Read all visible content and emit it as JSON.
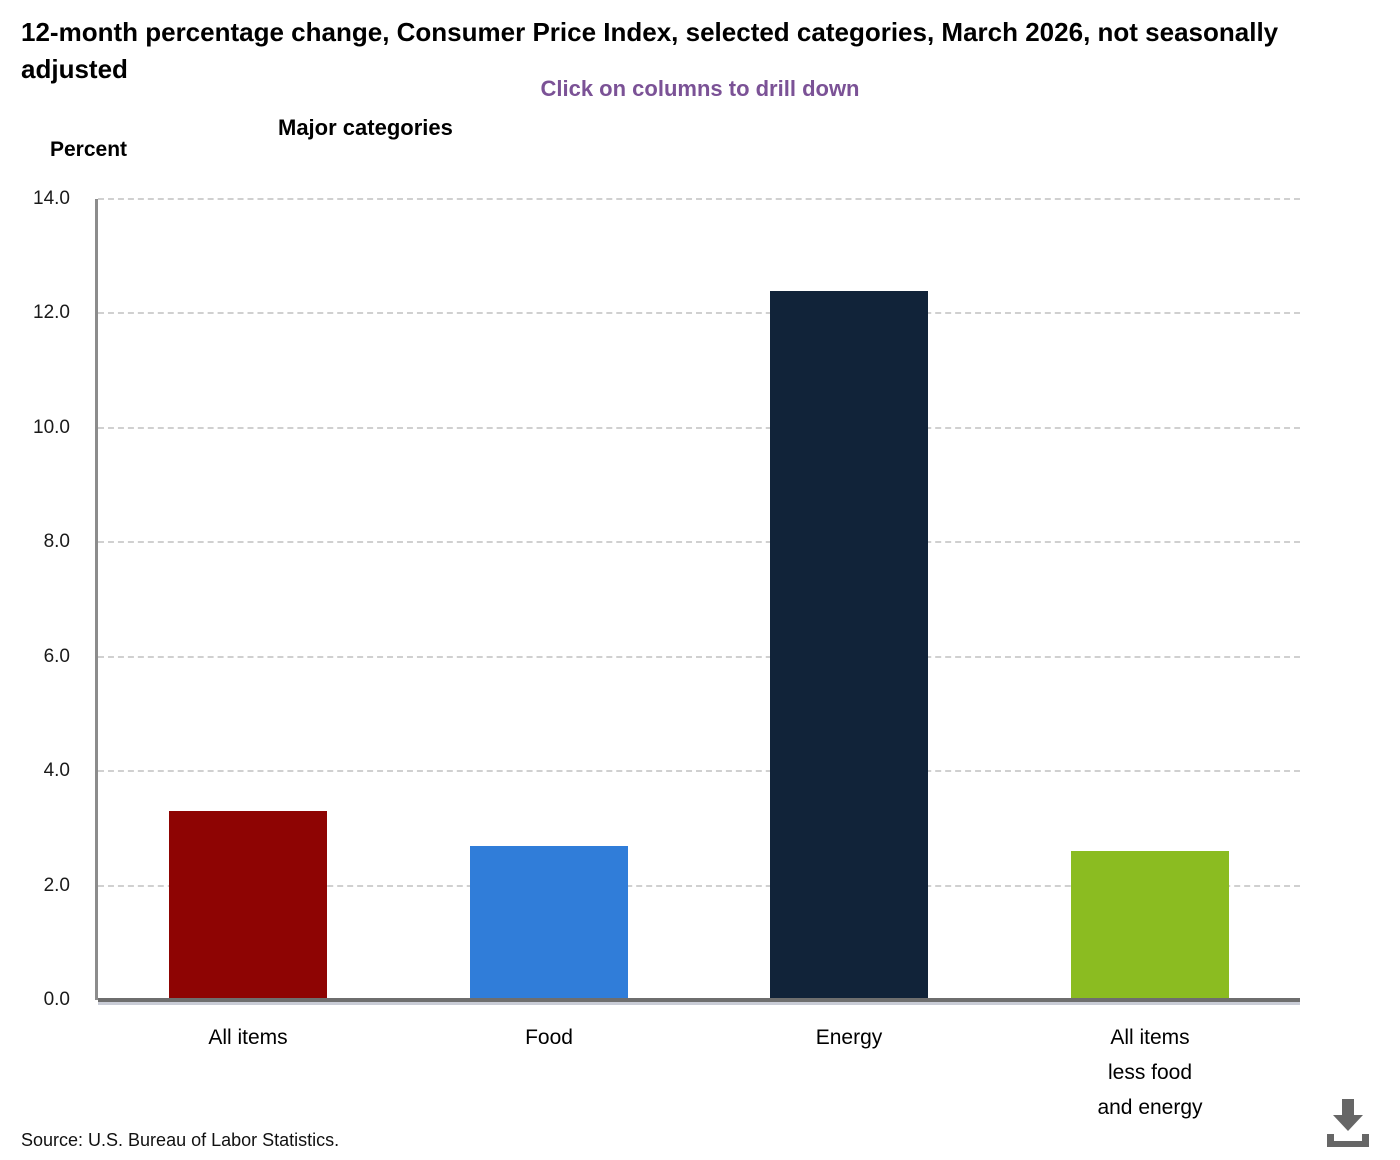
{
  "chart_data": {
    "type": "bar",
    "title": "12-month percentage change, Consumer Price Index, selected categories, March 2026, not seasonally adjusted",
    "subtitle": "Click on columns to drill down",
    "xlabel": "Major categories",
    "ylabel": "Percent",
    "categories": [
      "All items",
      "Food",
      "Energy",
      "All items less food and energy"
    ],
    "category_label_lines": [
      [
        "All items"
      ],
      [
        "Food"
      ],
      [
        "Energy"
      ],
      [
        "All items",
        "less food",
        "and energy"
      ]
    ],
    "values": [
      3.3,
      2.7,
      12.4,
      2.6
    ],
    "bar_colors": [
      "#8e0403",
      "#307dd9",
      "#112339",
      "#8bbc21"
    ],
    "ylim": [
      0,
      14
    ],
    "ytick_step": 2,
    "ytick_labels": [
      "0.0",
      "2.0",
      "4.0",
      "6.0",
      "8.0",
      "10.0",
      "12.0",
      "14.0"
    ],
    "grid": "horizontal-dashed",
    "legend_position": "none",
    "interaction_hint": "Click on columns to drill down"
  },
  "footer": {
    "source": "Source: U.S. Bureau of Labor Statistics."
  },
  "icons": {
    "download": "download-icon"
  },
  "colors": {
    "subtitle_text": "#7b5296",
    "grid_line": "#d0d0d0",
    "y_axis_line": "#8c8c8c",
    "baseline": "#6e6e6e",
    "baseline_shadow": "#c9ccd6",
    "download_icon": "#666666",
    "bar_all_items": "#8e0403",
    "bar_food": "#307dd9",
    "bar_energy": "#112339",
    "bar_all_items_less_food_and_energy": "#8bbc21"
  }
}
